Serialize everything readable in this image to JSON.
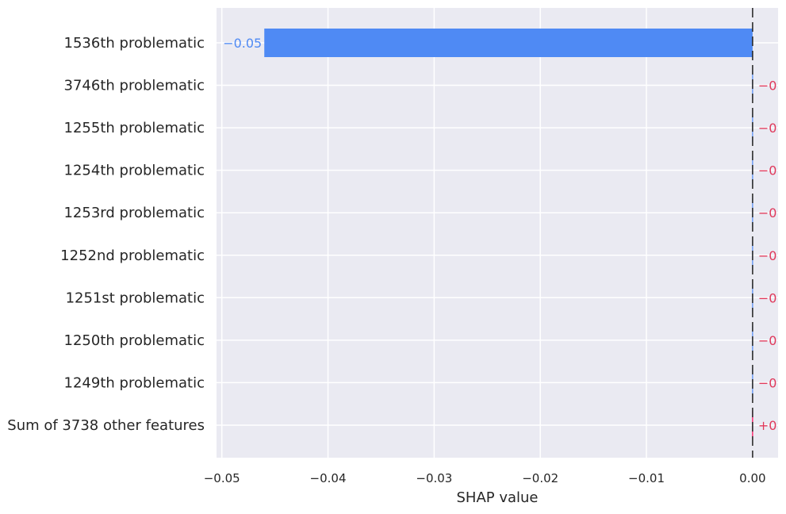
{
  "chart_data": {
    "type": "bar",
    "orientation": "horizontal",
    "title": "",
    "xlabel": "SHAP value",
    "ylabel": "",
    "xlim": [
      -0.0505,
      0.0024
    ],
    "xticks": [
      -0.05,
      -0.04,
      -0.03,
      -0.02,
      -0.01,
      0.0
    ],
    "xtick_labels": [
      "−0.05",
      "−0.04",
      "−0.03",
      "−0.02",
      "−0.01",
      "0.00"
    ],
    "grid": true,
    "baseline": 0,
    "categories": [
      "1536th problematic",
      "3746th problematic",
      "1255th problematic",
      "1254th problematic",
      "1253rd problematic",
      "1252nd problematic",
      "1251st problematic",
      "1250th problematic",
      "1249th problematic",
      "Sum of 3738 other features"
    ],
    "values": [
      -0.046,
      0,
      0,
      0,
      0,
      0,
      0,
      0,
      0,
      0
    ],
    "value_labels": [
      "−0.05",
      "−0",
      "−0",
      "−0",
      "−0",
      "−0",
      "−0",
      "−0",
      "−0",
      "+0"
    ],
    "colors": {
      "negative": "#4f8af4",
      "positive": "#ff0051",
      "negative_label": "#4f8af4",
      "positive_label": "#e0385a",
      "background": "#eaeaf2",
      "grid": "#ffffff"
    }
  }
}
